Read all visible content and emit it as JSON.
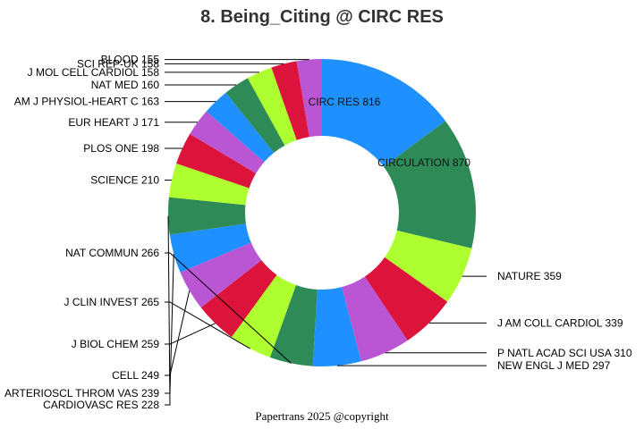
{
  "chart_data": {
    "type": "pie",
    "title": "8. Being_Citing @ CIRC RES",
    "footer": "Papertrans 2025 @copyright",
    "colors": [
      "#1e90ff",
      "#2e8b57",
      "#adff2f",
      "#dc143c",
      "#ba55d3"
    ],
    "slices": [
      {
        "label": "CIRCULATION",
        "value": 870
      },
      {
        "label": "CIRC RES",
        "value": 816
      },
      {
        "label": "NATURE",
        "value": 359
      },
      {
        "label": "J AM COLL CARDIOL",
        "value": 339
      },
      {
        "label": "P NATL ACAD SCI USA",
        "value": 310
      },
      {
        "label": "NEW ENGL J MED",
        "value": 297
      },
      {
        "label": "NAT COMMUN",
        "value": 266
      },
      {
        "label": "J CLIN INVEST",
        "value": 265
      },
      {
        "label": "J BIOL CHEM",
        "value": 259
      },
      {
        "label": "CELL",
        "value": 249
      },
      {
        "label": "ARTERIOSCL THROM VAS",
        "value": 239
      },
      {
        "label": "CARDIOVASC RES",
        "value": 228
      },
      {
        "label": "SCIENCE",
        "value": 210
      },
      {
        "label": "PLOS ONE",
        "value": 198
      },
      {
        "label": "EUR HEART J",
        "value": 171
      },
      {
        "label": "AM J PHYSIOL-HEART C",
        "value": 163
      },
      {
        "label": "NAT MED",
        "value": 160
      },
      {
        "label": "J MOL CELL CARDIOL",
        "value": 158
      },
      {
        "label": "SCI REP-UK",
        "value": 158
      },
      {
        "label": "BLOOD",
        "value": 155
      }
    ]
  }
}
